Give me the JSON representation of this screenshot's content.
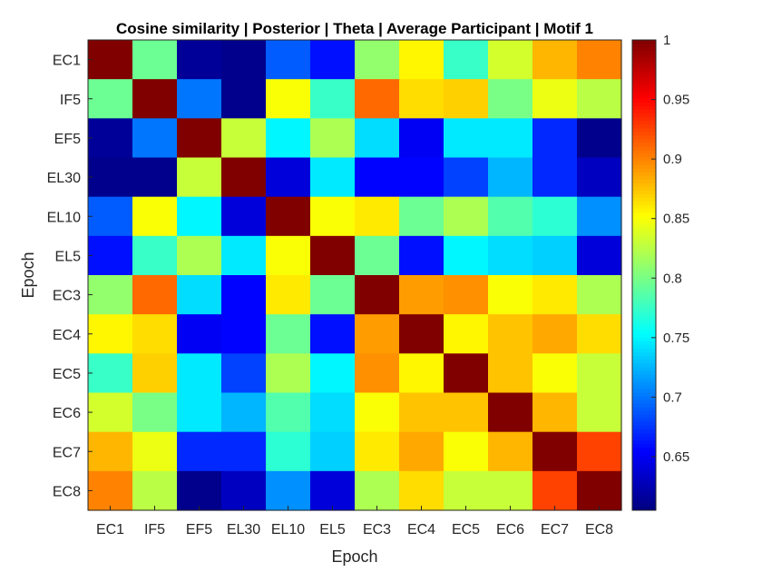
{
  "chart_data": {
    "type": "heatmap",
    "title": "Cosine similarity | Posterior | Theta | Average Participant | Motif 1",
    "xlabel": "Epoch",
    "ylabel": "Epoch",
    "categories": [
      "EC1",
      "IF5",
      "EF5",
      "EL30",
      "EL10",
      "EL5",
      "EC3",
      "EC4",
      "EC5",
      "EC6",
      "EC7",
      "EC8"
    ],
    "colormap": "jet",
    "clim": [
      0.605,
      1
    ],
    "colorbar": {
      "ticks": [
        0.65,
        0.7,
        0.75,
        0.8,
        0.85,
        0.9,
        0.95,
        1
      ],
      "labels": [
        "0.65",
        "0.7",
        "0.75",
        "0.8",
        "0.85",
        "0.9",
        "0.95",
        "1"
      ]
    },
    "values": [
      [
        1.0,
        0.795,
        0.615,
        0.61,
        0.69,
        0.66,
        0.81,
        0.855,
        0.775,
        0.835,
        0.88,
        0.9
      ],
      [
        0.795,
        1.0,
        0.7,
        0.61,
        0.85,
        0.775,
        0.91,
        0.865,
        0.87,
        0.8,
        0.845,
        0.825
      ],
      [
        0.615,
        0.7,
        1.0,
        0.83,
        0.75,
        0.82,
        0.74,
        0.65,
        0.745,
        0.745,
        0.67,
        0.61
      ],
      [
        0.61,
        0.61,
        0.83,
        1.0,
        0.64,
        0.745,
        0.655,
        0.655,
        0.68,
        0.725,
        0.67,
        0.63
      ],
      [
        0.69,
        0.85,
        0.75,
        0.64,
        1.0,
        0.85,
        0.86,
        0.795,
        0.82,
        0.785,
        0.77,
        0.71
      ],
      [
        0.66,
        0.775,
        0.82,
        0.745,
        0.85,
        1.0,
        0.795,
        0.66,
        0.75,
        0.74,
        0.735,
        0.64
      ],
      [
        0.81,
        0.91,
        0.74,
        0.655,
        0.86,
        0.795,
        1.0,
        0.89,
        0.895,
        0.85,
        0.86,
        0.82
      ],
      [
        0.855,
        0.865,
        0.65,
        0.655,
        0.795,
        0.66,
        0.89,
        1.0,
        0.855,
        0.875,
        0.885,
        0.865
      ],
      [
        0.775,
        0.87,
        0.745,
        0.68,
        0.82,
        0.75,
        0.895,
        0.855,
        1.0,
        0.875,
        0.85,
        0.83
      ],
      [
        0.835,
        0.8,
        0.745,
        0.725,
        0.785,
        0.74,
        0.85,
        0.875,
        0.875,
        1.0,
        0.88,
        0.83
      ],
      [
        0.88,
        0.845,
        0.67,
        0.67,
        0.77,
        0.735,
        0.86,
        0.885,
        0.85,
        0.88,
        1.0,
        0.925
      ],
      [
        0.9,
        0.825,
        0.61,
        0.63,
        0.71,
        0.64,
        0.82,
        0.865,
        0.83,
        0.83,
        0.925,
        1.0
      ]
    ]
  }
}
